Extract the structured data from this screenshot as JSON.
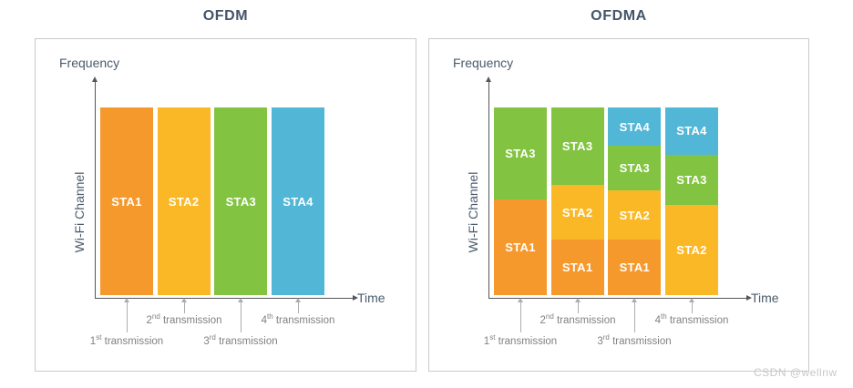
{
  "figure": {
    "watermark": "CSDN @wellnw"
  },
  "palette": {
    "STA1": "#F6992C",
    "STA2": "#FBB826",
    "STA3": "#82C341",
    "STA4": "#52B6D6"
  },
  "style_colors": {
    "title": "#44546A",
    "axis_label": "#4A5B6C",
    "axis_line": "#55565A",
    "annotation_text": "#7E8184",
    "annotation_arrow": "#ABADAF",
    "panel_border": "#C9CACB"
  },
  "panels": [
    {
      "title": "OFDM",
      "y_axis_label": "Frequency",
      "channel_label": "Wi-Fi Channel",
      "x_axis_label": "Time",
      "columns": [
        {
          "blocks": [
            {
              "sta": "STA1",
              "pct": 100
            }
          ]
        },
        {
          "blocks": [
            {
              "sta": "STA2",
              "pct": 100
            }
          ]
        },
        {
          "blocks": [
            {
              "sta": "STA3",
              "pct": 100
            }
          ]
        },
        {
          "blocks": [
            {
              "sta": "STA4",
              "pct": 100
            }
          ]
        }
      ],
      "transmissions": [
        {
          "num": "1",
          "suffix": "st",
          "word": "transmission",
          "row": 2
        },
        {
          "num": "2",
          "suffix": "nd",
          "word": "transmission",
          "row": 1
        },
        {
          "num": "3",
          "suffix": "rd",
          "word": "transmission",
          "row": 2
        },
        {
          "num": "4",
          "suffix": "th",
          "word": "transmission",
          "row": 1
        }
      ]
    },
    {
      "title": "OFDMA",
      "y_axis_label": "Frequency",
      "channel_label": "Wi-Fi Channel",
      "x_axis_label": "Time",
      "columns": [
        {
          "blocks": [
            {
              "sta": "STA3",
              "pct": 49
            },
            {
              "sta": "STA1",
              "pct": 51
            }
          ]
        },
        {
          "blocks": [
            {
              "sta": "STA3",
              "pct": 41.2
            },
            {
              "sta": "STA2",
              "pct": 29.4
            },
            {
              "sta": "STA1",
              "pct": 29.4
            }
          ]
        },
        {
          "blocks": [
            {
              "sta": "STA4",
              "pct": 20.6
            },
            {
              "sta": "STA3",
              "pct": 23.5
            },
            {
              "sta": "STA2",
              "pct": 26.4
            },
            {
              "sta": "STA1",
              "pct": 29.5
            }
          ]
        },
        {
          "blocks": [
            {
              "sta": "STA4",
              "pct": 25
            },
            {
              "sta": "STA3",
              "pct": 27
            },
            {
              "sta": "STA2",
              "pct": 48
            }
          ]
        }
      ],
      "transmissions": [
        {
          "num": "1",
          "suffix": "st",
          "word": "transmission",
          "row": 2
        },
        {
          "num": "2",
          "suffix": "nd",
          "word": "transmission",
          "row": 1
        },
        {
          "num": "3",
          "suffix": "rd",
          "word": "transmission",
          "row": 2
        },
        {
          "num": "4",
          "suffix": "th",
          "word": "transmission",
          "row": 1
        }
      ]
    }
  ]
}
